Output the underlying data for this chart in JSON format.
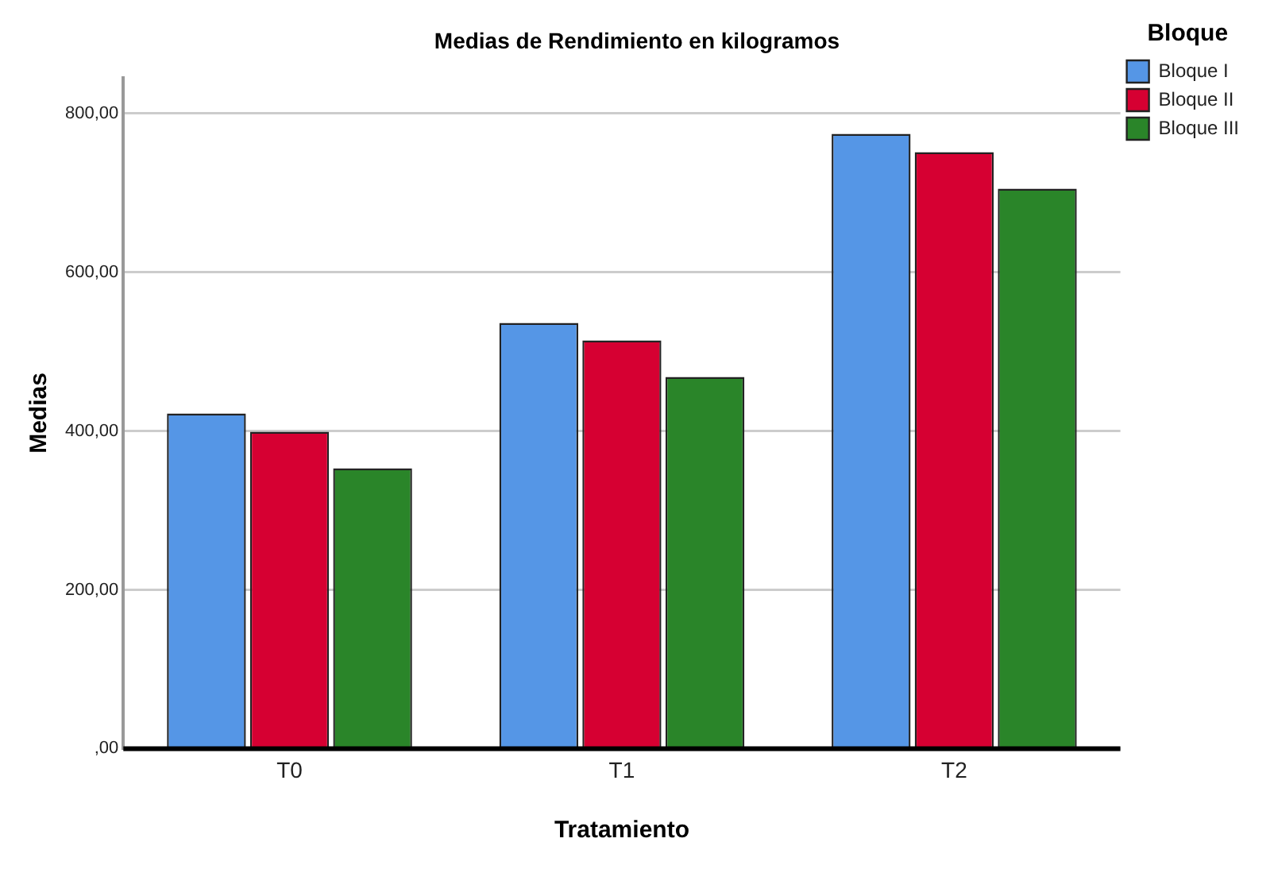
{
  "chart_data": {
    "type": "bar",
    "title": "Medias de Rendimiento en kilogramos",
    "xlabel": "Tratamiento",
    "ylabel": "Medias",
    "legend_title": "Bloque",
    "categories": [
      "T0",
      "T1",
      "T2"
    ],
    "series": [
      {
        "name": "Bloque I",
        "color": "#5596e6",
        "values": [
          422,
          536,
          774
        ]
      },
      {
        "name": "Bloque II",
        "color": "#d60032",
        "values": [
          399,
          514,
          751
        ]
      },
      {
        "name": "Bloque III",
        "color": "#2a8529",
        "values": [
          353,
          468,
          705
        ]
      }
    ],
    "ylim": [
      0,
      845
    ],
    "yticks": [
      {
        "value": 0,
        "label": ",00"
      },
      {
        "value": 200,
        "label": "200,00"
      },
      {
        "value": 400,
        "label": "400,00"
      },
      {
        "value": 600,
        "label": "600,00"
      },
      {
        "value": 800,
        "label": "800,00"
      }
    ],
    "grid": "y",
    "legend": "top right"
  }
}
